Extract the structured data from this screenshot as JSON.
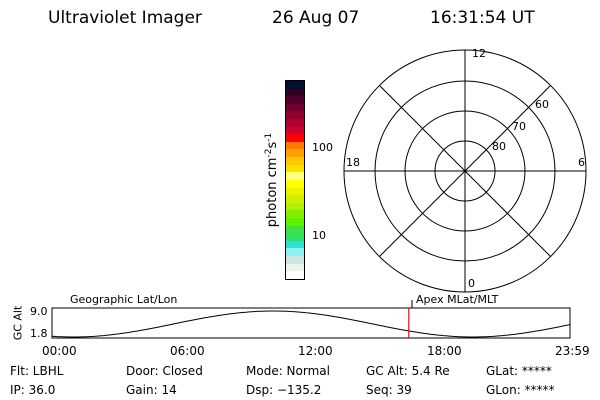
{
  "header": {
    "instrument": "Ultraviolet Imager",
    "date": "26 Aug 07",
    "time": "16:31:54 UT"
  },
  "colorbar": {
    "label": "photon cm",
    "label_exp1": "-2",
    "label_mid": "s",
    "label_exp2": "-1",
    "ticks": [
      "100",
      "10"
    ],
    "colors": [
      "#001030",
      "#300020",
      "#500028",
      "#700030",
      "#900030",
      "#b00030",
      "#d00030",
      "#ff0000",
      "#ff7800",
      "#ffa000",
      "#ffc800",
      "#ffe000",
      "#ffff80",
      "#ffff00",
      "#e8f400",
      "#d0f000",
      "#b0f000",
      "#80f000",
      "#60f000",
      "#40e040",
      "#30e060",
      "#30e0d0",
      "#90f0f0",
      "#d0e4e4",
      "#e8f4ec",
      "#ffffff"
    ]
  },
  "polar": {
    "mlt_labels": {
      "top": "12",
      "bottom": "0",
      "left": "18",
      "right": "6"
    },
    "lat_labels": [
      "60",
      "70",
      "80"
    ]
  },
  "timeline": {
    "left_label": "Geographic Lat/Lon",
    "right_label": "Apex MLat/MLT",
    "ylabel": "GC Alt",
    "yticks": [
      "9.0",
      "1.8"
    ],
    "xticks": [
      "00:00",
      "06:00",
      "12:00",
      "18:00",
      "23:59"
    ],
    "marker_time": "16:31:54",
    "marker_color": "#ff0000"
  },
  "status": {
    "row1": [
      "Flt: LBHL",
      "Door: Closed",
      "Mode: Normal",
      "GC Alt: 5.4 Re",
      "GLat: *****"
    ],
    "row2": [
      "IP: 36.0",
      "Gain: 14",
      "Dsp: −135.2",
      "Seq: 39",
      "GLon: *****"
    ]
  }
}
